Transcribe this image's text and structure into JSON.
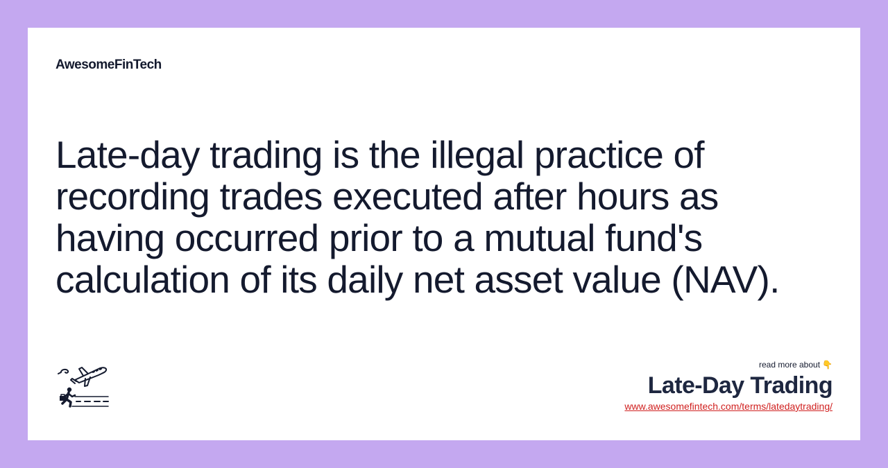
{
  "brand": {
    "name": "AwesomeFinTech"
  },
  "definition": {
    "text": "Late-day trading is the illegal practice of recording trades executed after hours as having occurred prior to a mutual fund's calculation of its daily net asset value (NAV)."
  },
  "footer": {
    "read_more_label": "read more about",
    "pointer_icon": "👇",
    "term_title": "Late-Day Trading",
    "term_url": "www.awesomefintech.com/terms/latedaytrading/"
  },
  "illustration": {
    "icon": "airplane-and-running-businessman-icon"
  },
  "colors": {
    "background": "#c4a8f0",
    "card": "#ffffff",
    "text": "#141a2e",
    "link": "#d0201f"
  }
}
